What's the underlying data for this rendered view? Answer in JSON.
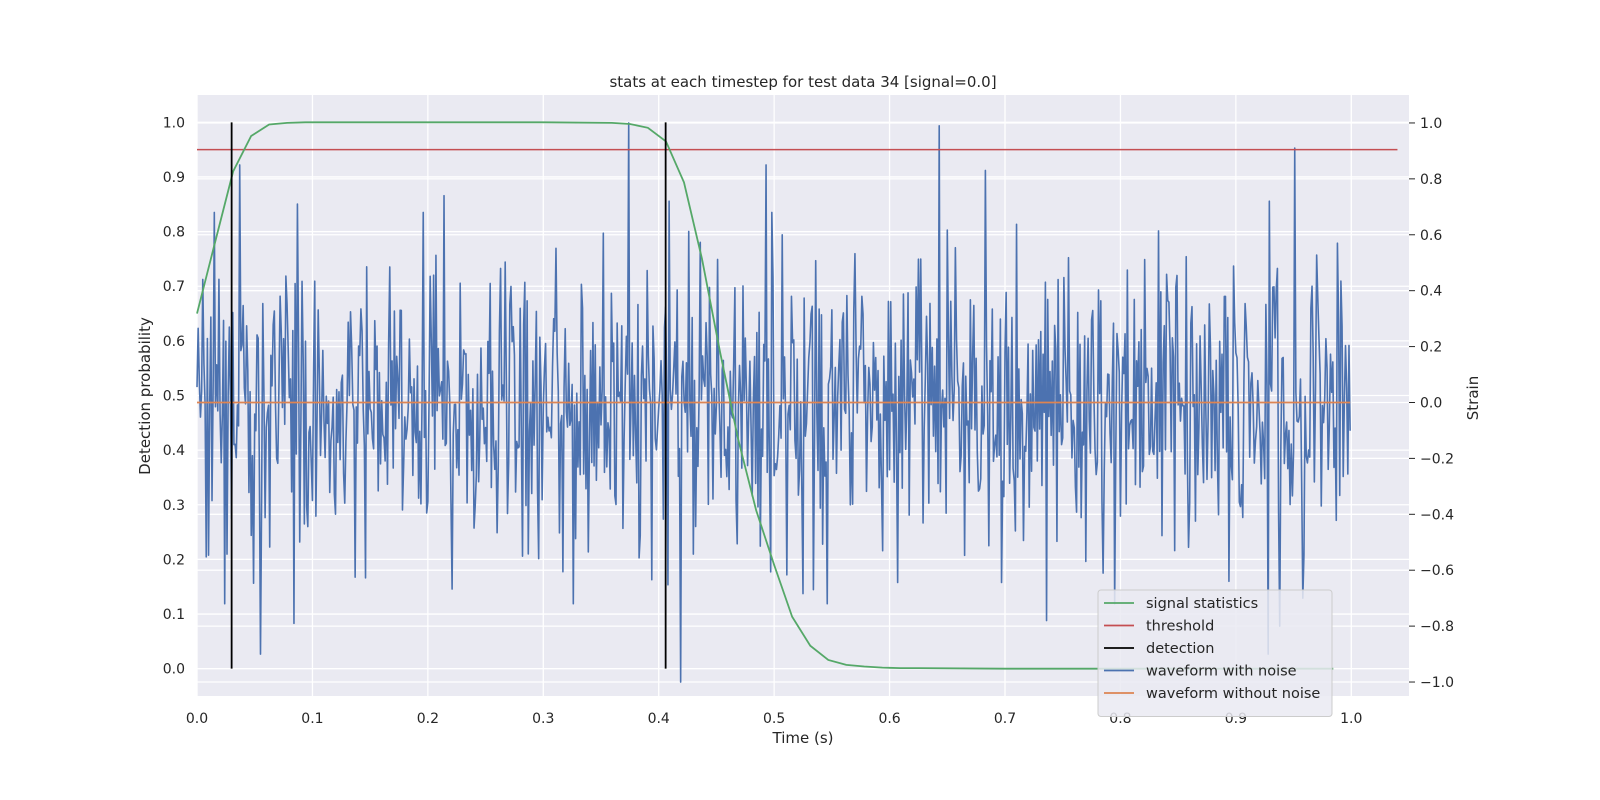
{
  "chart_data": {
    "type": "line",
    "title": "stats at each timestep for test data 34 [signal=0.0]",
    "xlabel": "Time (s)",
    "ylabel_left": "Detection probability",
    "ylabel_right": "Strain",
    "xlim": [
      0.0,
      1.05
    ],
    "ylim_left": [
      -0.05,
      1.05
    ],
    "ylim_right": [
      -1.05,
      1.1
    ],
    "x_ticks": [
      "0.0",
      "0.1",
      "0.2",
      "0.3",
      "0.4",
      "0.5",
      "0.6",
      "0.7",
      "0.8",
      "0.9",
      "1.0"
    ],
    "y_left_ticks": [
      "0.0",
      "0.1",
      "0.2",
      "0.3",
      "0.4",
      "0.5",
      "0.6",
      "0.7",
      "0.8",
      "0.9",
      "1.0"
    ],
    "y_right_ticks": [
      "−1.0",
      "−0.8",
      "−0.6",
      "−0.4",
      "−0.2",
      "0.0",
      "0.2",
      "0.4",
      "0.6",
      "0.8",
      "1.0"
    ],
    "grid": true,
    "legend_position": "lower-right",
    "colors": {
      "plot_background": "#eaeaf2",
      "grid": "#ffffff",
      "signal_statistics": "#55a868",
      "threshold": "#c44e52",
      "detection": "#000000",
      "waveform_with_noise": "#4c72b0",
      "waveform_without_noise": "#dd8452"
    },
    "legend": [
      {
        "label": "signal statistics",
        "series": "signal_statistics"
      },
      {
        "label": "threshold",
        "series": "threshold"
      },
      {
        "label": "detection",
        "series": "detection"
      },
      {
        "label": "waveform with noise",
        "series": "waveform_with_noise"
      },
      {
        "label": "waveform without noise",
        "series": "waveform_without_noise"
      }
    ],
    "signal_statistics": {
      "axis": "left",
      "x": [
        0.0,
        0.0156,
        0.0313,
        0.0469,
        0.0625,
        0.0781,
        0.0938,
        0.1094,
        0.125,
        0.2,
        0.3,
        0.3594,
        0.375,
        0.3906,
        0.4063,
        0.4219,
        0.4375,
        0.4531,
        0.4688,
        0.4844,
        0.5,
        0.5156,
        0.5313,
        0.5469,
        0.5625,
        0.5781,
        0.5938,
        0.6094,
        0.625,
        0.7,
        0.8,
        0.9,
        0.9844
      ],
      "y": [
        0.65,
        0.78,
        0.91,
        0.975,
        0.996,
        0.999,
        1.0,
        1.0,
        1.0,
        1.0,
        1.0,
        0.999,
        0.997,
        0.99,
        0.965,
        0.89,
        0.75,
        0.58,
        0.42,
        0.29,
        0.19,
        0.095,
        0.042,
        0.016,
        0.007,
        0.004,
        0.002,
        0.001,
        0.001,
        0.0,
        0.0,
        0.0,
        0.0
      ]
    },
    "threshold": {
      "axis": "left",
      "value": 0.95,
      "x_range": [
        0.0,
        1.04
      ]
    },
    "detection": {
      "axis": "left",
      "x": [
        0.03,
        0.406
      ],
      "y_range": [
        0.0,
        1.0
      ]
    },
    "waveform_with_noise": {
      "axis": "right",
      "x_range": [
        0.0,
        0.999
      ],
      "n_points": 1000,
      "approx_std": 0.26,
      "peaks": [
        {
          "x": 0.037,
          "y": 0.85
        },
        {
          "x": 0.087,
          "y": 0.71
        },
        {
          "x": 0.214,
          "y": 0.74
        },
        {
          "x": 0.374,
          "y": 1.0
        },
        {
          "x": 0.409,
          "y": 0.72
        },
        {
          "x": 0.493,
          "y": 0.85
        },
        {
          "x": 0.643,
          "y": 0.99
        },
        {
          "x": 0.683,
          "y": 0.83
        },
        {
          "x": 0.929,
          "y": 0.72
        },
        {
          "x": 0.951,
          "y": 0.91
        },
        {
          "x": 0.055,
          "y": -0.9
        },
        {
          "x": 0.084,
          "y": -0.79
        },
        {
          "x": 0.419,
          "y": -1.0
        },
        {
          "x": 0.736,
          "y": -0.78
        },
        {
          "x": 0.928,
          "y": -0.9
        },
        {
          "x": 0.938,
          "y": -0.8
        },
        {
          "x": 0.958,
          "y": -0.7
        }
      ]
    },
    "waveform_without_noise": {
      "axis": "right",
      "x_range": [
        0.0,
        0.999
      ],
      "value": 0.0
    }
  }
}
